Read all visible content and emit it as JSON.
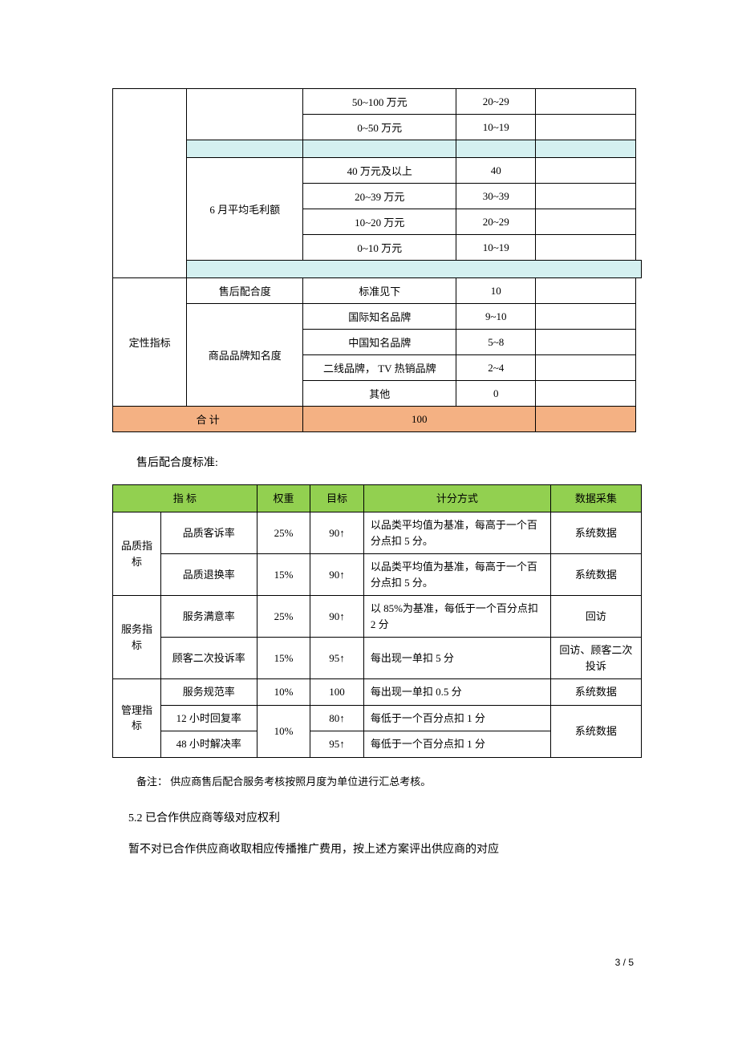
{
  "table1": {
    "rows_top": [
      {
        "c3": "50~100 万元",
        "c4": "20~29"
      },
      {
        "c3": "0~50 万元",
        "c4": "10~19"
      }
    ],
    "gross_label": "6 月平均毛利额",
    "rows_gross": [
      {
        "c3": "40 万元及以上",
        "c4": "40"
      },
      {
        "c3": "20~39 万元",
        "c4": "30~39"
      },
      {
        "c3": "10~20 万元",
        "c4": "20~29"
      },
      {
        "c3": "0~10 万元",
        "c4": "10~19"
      }
    ],
    "qual_label": "定性指标",
    "aftersale_row": {
      "c2": "售后配合度",
      "c3": "标准见下",
      "c4": "10"
    },
    "brand_label": "商品品牌知名度",
    "rows_brand": [
      {
        "c3": "国际知名品牌",
        "c4": "9~10"
      },
      {
        "c3": "中国知名品牌",
        "c4": "5~8"
      },
      {
        "c3": "二线品牌，  TV 热销品牌",
        "c4": "2~4"
      },
      {
        "c3": "其他",
        "c4": "0"
      }
    ],
    "total_label": "合   计",
    "total_value": "100"
  },
  "para_aftersale_title": "售后配合度标准:",
  "table2": {
    "headers": [
      "指   标",
      "权重",
      "目标",
      "计分方式",
      "数据采集"
    ],
    "groups": [
      {
        "group": "品质指标",
        "rows": [
          {
            "name": "品质客诉率",
            "weight": "25%",
            "target": "90↑",
            "method": "以品类平均值为基准，每高于一个百分点扣   5 分。",
            "source": "系统数据"
          },
          {
            "name": "品质退换率",
            "weight": "15%",
            "target": "90↑",
            "method": "以品类平均值为基准，每高于一个百分点扣   5 分。",
            "source": "系统数据"
          }
        ]
      },
      {
        "group": "服务指标",
        "rows": [
          {
            "name": "服务满意率",
            "weight": "25%",
            "target": "90↑",
            "method": "以  85%为基准，每低于一个百分点扣  2 分",
            "source": "回访"
          },
          {
            "name": "顾客二次投诉率",
            "weight": "15%",
            "target": "95↑",
            "method": "每出现一单扣   5 分",
            "source": "回访、顾客二次投诉"
          }
        ]
      },
      {
        "group": "管理指标",
        "rows": [
          {
            "name": "服务规范率",
            "weight": "10%",
            "target": "100",
            "method": "每出现一单扣   0.5 分",
            "source": "系统数据"
          },
          {
            "name": "12 小时回复率",
            "weight": "10%",
            "target": "80↑",
            "method": "每低于一个百分点扣    1 分",
            "source": "系统数据"
          },
          {
            "name": "48 小时解决率",
            "target": "95↑",
            "method": "每低于一个百分点扣    1 分"
          }
        ]
      }
    ]
  },
  "note": "备注：  供应商售后配合服务考核按照月度为单位进行汇总考核。",
  "sec_title": "5.2  已合作供应商等级对应权利",
  "body_text": "暂不对已合作供应商收取相应传播推广费用，按上述方案评出供应商的对应",
  "page_num": "3 / 5"
}
